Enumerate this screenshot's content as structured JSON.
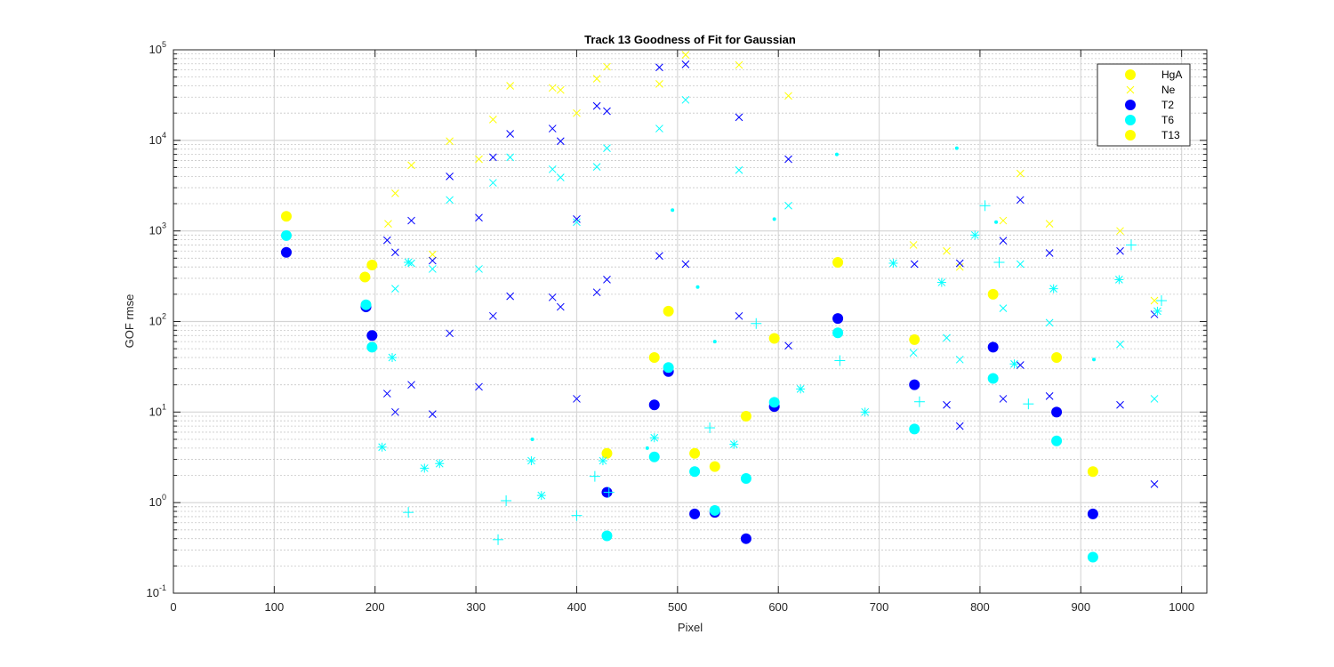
{
  "chart_data": {
    "type": "scatter",
    "title": "Track 13  Goodness of Fit for Gaussian",
    "xlabel": "Pixel",
    "ylabel": "GOF rmse",
    "xlim": [
      0,
      1025
    ],
    "ylim": [
      0.1,
      100000
    ],
    "yscale": "log",
    "grid": "on (major and minor)",
    "legend_position": "top-right",
    "xticks": [
      "0",
      "100",
      "200",
      "300",
      "400",
      "500",
      "600",
      "700",
      "800",
      "900",
      "1000"
    ],
    "yticks": [
      {
        "base": "10",
        "exp": "-1",
        "v": 0.1
      },
      {
        "base": "10",
        "exp": "0",
        "v": 1
      },
      {
        "base": "10",
        "exp": "1",
        "v": 10
      },
      {
        "base": "10",
        "exp": "2",
        "v": 100
      },
      {
        "base": "10",
        "exp": "3",
        "v": 1000
      },
      {
        "base": "10",
        "exp": "4",
        "v": 10000
      },
      {
        "base": "10",
        "exp": "5",
        "v": 100000
      }
    ],
    "colors": {
      "yellow": "#ffff00",
      "blue": "#0000ff",
      "cyan": "#00ffff",
      "axis": "#262626"
    },
    "legend": [
      {
        "label": "HgA",
        "marker": "dot",
        "color": "#ffff00"
      },
      {
        "label": "Ne",
        "marker": "x",
        "color": "#ffff00"
      },
      {
        "label": "T2",
        "marker": "dot",
        "color": "#0000ff"
      },
      {
        "label": "T6",
        "marker": "dot",
        "color": "#00ffff"
      },
      {
        "label": "T13",
        "marker": "dot",
        "color": "#ffff00"
      }
    ],
    "series": [
      {
        "name": "HgA",
        "marker": "dot",
        "color": "#ffff00",
        "points": [
          [
            112,
            1450
          ],
          [
            190,
            310
          ],
          [
            197,
            420
          ],
          [
            430,
            3.5
          ],
          [
            477,
            40
          ],
          [
            491,
            130
          ],
          [
            517,
            3.5
          ],
          [
            537,
            2.5
          ],
          [
            568,
            9
          ],
          [
            596,
            65
          ],
          [
            659,
            450
          ],
          [
            735,
            63
          ],
          [
            813,
            200
          ],
          [
            876,
            40
          ],
          [
            912,
            2.2
          ]
        ]
      },
      {
        "name": "Ne",
        "marker": "x",
        "color": "#ffff00",
        "points": [
          [
            213,
            1200
          ],
          [
            220,
            2600
          ],
          [
            236,
            5300
          ],
          [
            257,
            550
          ],
          [
            274,
            9800
          ],
          [
            303,
            6200
          ],
          [
            317,
            17000
          ],
          [
            334,
            40000
          ],
          [
            376,
            38000
          ],
          [
            384,
            36000
          ],
          [
            400,
            20000
          ],
          [
            420,
            48000
          ],
          [
            430,
            65000
          ],
          [
            482,
            42000
          ],
          [
            508,
            88000
          ],
          [
            561,
            68000
          ],
          [
            610,
            31000
          ],
          [
            734,
            700
          ],
          [
            767,
            600
          ],
          [
            780,
            400
          ],
          [
            840,
            4300
          ],
          [
            823,
            1300
          ],
          [
            869,
            1200
          ],
          [
            939,
            1000
          ],
          [
            973,
            170
          ]
        ]
      },
      {
        "name": "T2",
        "marker": "dot",
        "color": "#0000ff",
        "points": [
          [
            112,
            580
          ],
          [
            191,
            145
          ],
          [
            197,
            70
          ],
          [
            430,
            1.3
          ],
          [
            477,
            12
          ],
          [
            491,
            28
          ],
          [
            517,
            0.75
          ],
          [
            537,
            0.78
          ],
          [
            568,
            0.4
          ],
          [
            596,
            11.5
          ],
          [
            659,
            108
          ],
          [
            735,
            20
          ],
          [
            813,
            52
          ],
          [
            876,
            10
          ],
          [
            912,
            0.75
          ]
        ]
      },
      {
        "name": "T2 x",
        "marker": "x",
        "color": "#0000ff",
        "points": [
          [
            212,
            790
          ],
          [
            220,
            580
          ],
          [
            236,
            1300
          ],
          [
            257,
            470
          ],
          [
            274,
            4000
          ],
          [
            303,
            1400
          ],
          [
            317,
            6500
          ],
          [
            334,
            11800
          ],
          [
            376,
            13500
          ],
          [
            384,
            9800
          ],
          [
            400,
            1350
          ],
          [
            420,
            24000
          ],
          [
            430,
            21000
          ],
          [
            482,
            64000
          ],
          [
            508,
            69000
          ],
          [
            561,
            18000
          ],
          [
            610,
            6200
          ],
          [
            735,
            430
          ],
          [
            780,
            440
          ],
          [
            840,
            2200
          ],
          [
            823,
            780
          ],
          [
            869,
            570
          ],
          [
            939,
            600
          ],
          [
            973,
            120
          ],
          [
            212,
            16
          ],
          [
            220,
            10
          ],
          [
            236,
            20
          ],
          [
            257,
            9.5
          ],
          [
            274,
            74
          ],
          [
            303,
            19
          ],
          [
            317,
            115
          ],
          [
            334,
            190
          ],
          [
            376,
            185
          ],
          [
            384,
            145
          ],
          [
            400,
            14
          ],
          [
            420,
            210
          ],
          [
            430,
            290
          ],
          [
            482,
            530
          ],
          [
            508,
            430
          ],
          [
            561,
            115
          ],
          [
            610,
            54
          ],
          [
            767,
            12
          ],
          [
            780,
            7
          ],
          [
            840,
            33
          ],
          [
            823,
            14
          ],
          [
            869,
            15
          ],
          [
            939,
            12
          ],
          [
            973,
            1.6
          ]
        ]
      },
      {
        "name": "T6",
        "marker": "dot",
        "color": "#00ffff",
        "points": [
          [
            112,
            890
          ],
          [
            191,
            153
          ],
          [
            197,
            52
          ],
          [
            430,
            0.43
          ],
          [
            477,
            3.2
          ],
          [
            491,
            31
          ],
          [
            517,
            2.2
          ],
          [
            537,
            0.82
          ],
          [
            568,
            1.85
          ],
          [
            596,
            12.8
          ],
          [
            659,
            75
          ],
          [
            735,
            6.5
          ],
          [
            813,
            23.5
          ],
          [
            876,
            4.8
          ],
          [
            912,
            0.25
          ]
        ]
      },
      {
        "name": "T6 x",
        "marker": "x",
        "color": "#00ffff",
        "points": [
          [
            220,
            230
          ],
          [
            236,
            440
          ],
          [
            257,
            380
          ],
          [
            274,
            2200
          ],
          [
            303,
            380
          ],
          [
            317,
            3400
          ],
          [
            334,
            6500
          ],
          [
            376,
            4800
          ],
          [
            384,
            3900
          ],
          [
            400,
            1250
          ],
          [
            420,
            5100
          ],
          [
            430,
            8200
          ],
          [
            482,
            13500
          ],
          [
            508,
            28000
          ],
          [
            561,
            4700
          ],
          [
            610,
            1900
          ],
          [
            734,
            45
          ],
          [
            767,
            66
          ],
          [
            780,
            38
          ],
          [
            840,
            430
          ],
          [
            823,
            140
          ],
          [
            869,
            97
          ],
          [
            939,
            56
          ],
          [
            973,
            14
          ]
        ]
      },
      {
        "name": "T6 +",
        "marker": "plus",
        "color": "#00ffff",
        "points": [
          [
            233,
            0.78
          ],
          [
            322,
            0.39
          ],
          [
            330,
            1.05
          ],
          [
            400,
            0.72
          ],
          [
            418,
            1.95
          ],
          [
            432,
            1.3
          ],
          [
            532,
            6.7
          ],
          [
            578,
            95
          ],
          [
            740,
            13
          ],
          [
            661,
            37
          ],
          [
            805,
            1900
          ],
          [
            819,
            450
          ],
          [
            848,
            12.3
          ],
          [
            950,
            700
          ],
          [
            980,
            170
          ]
        ]
      },
      {
        "name": "T6 *",
        "marker": "star",
        "color": "#00ffff",
        "points": [
          [
            207,
            4.1
          ],
          [
            217,
            40
          ],
          [
            233,
            450
          ],
          [
            249,
            2.4
          ],
          [
            264,
            2.7
          ],
          [
            355,
            2.9
          ],
          [
            365,
            1.2
          ],
          [
            426,
            2.9
          ],
          [
            477,
            5.2
          ],
          [
            556,
            4.4
          ],
          [
            622,
            18
          ],
          [
            686,
            10
          ],
          [
            714,
            440
          ],
          [
            762,
            270
          ],
          [
            795,
            900
          ],
          [
            834,
            34
          ],
          [
            873,
            230
          ],
          [
            938,
            290
          ],
          [
            976,
            130
          ]
        ]
      },
      {
        "name": "T6 .",
        "marker": "small",
        "color": "#00ffff",
        "points": [
          [
            356,
            5
          ],
          [
            470,
            4
          ],
          [
            495,
            1700
          ],
          [
            520,
            240
          ],
          [
            537,
            60
          ],
          [
            596,
            1350
          ],
          [
            658,
            7000
          ],
          [
            777,
            8200
          ],
          [
            816,
            1250
          ],
          [
            913,
            38
          ]
        ]
      }
    ]
  }
}
